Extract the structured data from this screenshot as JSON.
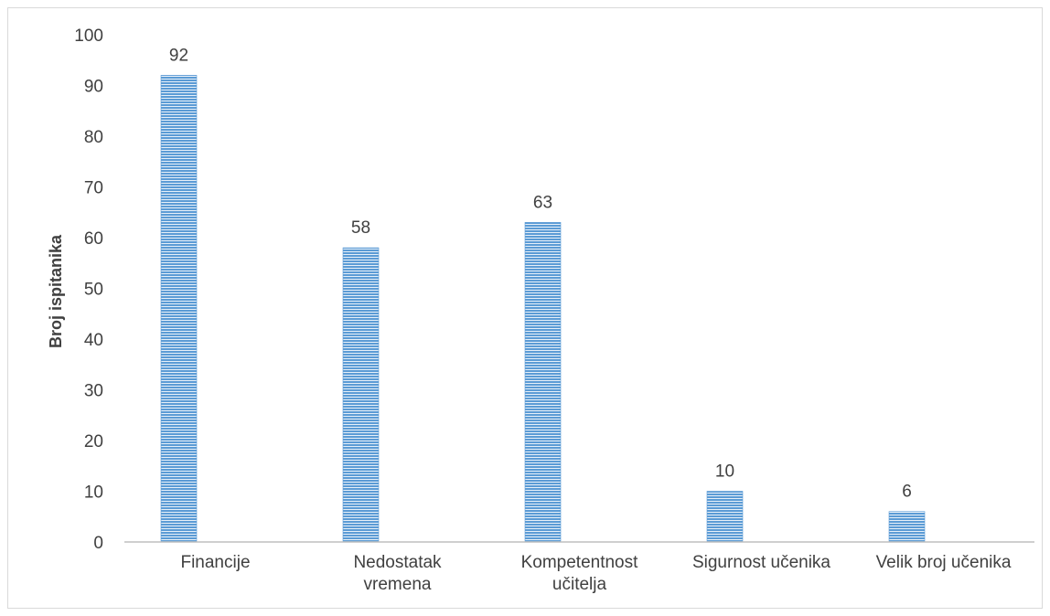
{
  "chart_data": {
    "type": "bar",
    "title": "",
    "xlabel": "",
    "ylabel": "Broj ispitanika",
    "ylim": [
      0,
      100
    ],
    "yticks": [
      0,
      10,
      20,
      30,
      40,
      50,
      60,
      70,
      80,
      90,
      100
    ],
    "grid": false,
    "legend": "none",
    "categories": [
      [
        "Financije"
      ],
      [
        "Nedostatak",
        "vremena"
      ],
      [
        "Kompetentnost",
        "učitelja"
      ],
      [
        "Sigurnost učenika"
      ],
      [
        "Velik broj učenika"
      ]
    ],
    "values": [
      92,
      58,
      63,
      10,
      6
    ],
    "data_labels": [
      "92",
      "58",
      "63",
      "10",
      "6"
    ],
    "colors": {
      "bar_fill": "#5b9bd5",
      "bar_stripe": "#ffffff",
      "axis": "#bfbfbf",
      "text": "#404040"
    }
  }
}
